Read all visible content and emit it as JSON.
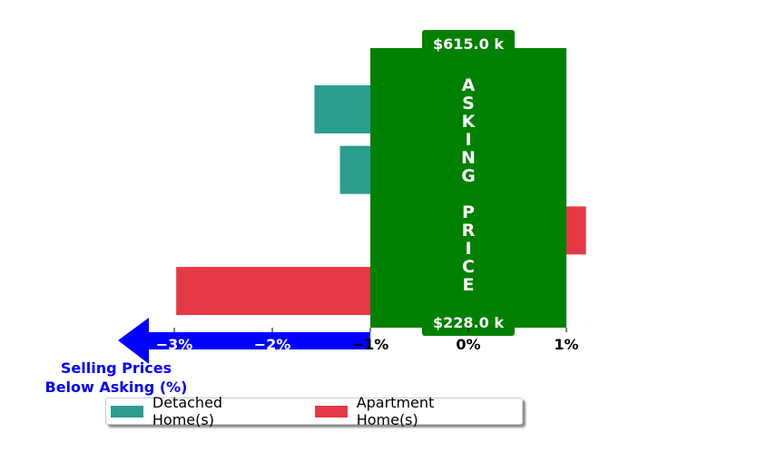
{
  "chart_data": {
    "type": "bar",
    "orientation": "horizontal",
    "x_ticks": [
      -3,
      -2,
      -1,
      0,
      1
    ],
    "x_tick_labels": [
      "−3%",
      "−2%",
      "−1%",
      "0%",
      "1%"
    ],
    "xlim": [
      -3.5,
      1.4
    ],
    "series": [
      {
        "name": "Detached Home(s)",
        "color": "#2a9d8f",
        "bars": [
          {
            "row": 0,
            "value": -1.57
          },
          {
            "row": 1,
            "value": -1.31
          }
        ]
      },
      {
        "name": "Apartment Home(s)",
        "color": "#e63946",
        "bars": [
          {
            "row": 2,
            "value": 1.2
          },
          {
            "row": 3,
            "value": -2.98
          }
        ]
      }
    ],
    "asking_band": {
      "range": [
        -1,
        1
      ],
      "color": "#008000",
      "label_letters": [
        "A",
        "S",
        "K",
        "I",
        "N",
        "G",
        "",
        "P",
        "R",
        "I",
        "C",
        "E"
      ],
      "top_value": "$615.0 k",
      "bottom_value": "$228.0 k"
    },
    "arrow": {
      "color": "#0000ff",
      "text_line1": "Selling Prices",
      "text_line2": "Below Asking (%)"
    },
    "legend_placement": "bottom-center",
    "grid": false
  }
}
